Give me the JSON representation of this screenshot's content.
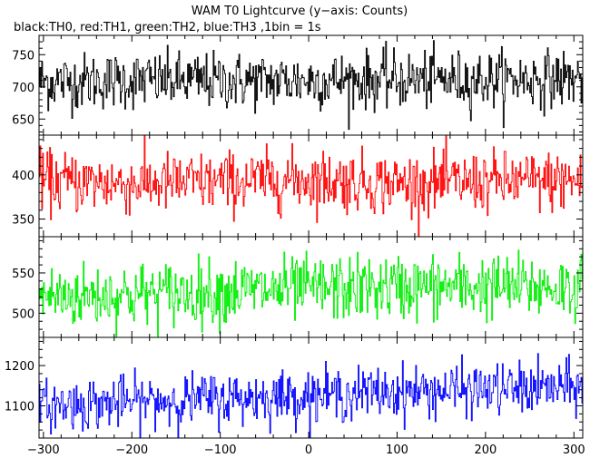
{
  "chart_data": {
    "type": "line",
    "title": "WAM T0 Lightcurve (y−axis: Counts)",
    "subtitle": "black:TH0, red:TH1, green:TH2, blue:TH3 ,1bin = 1s",
    "xlim": [
      -305,
      310
    ],
    "x_ticks": [
      -300,
      -200,
      -100,
      0,
      100,
      200,
      300
    ],
    "bin_seconds": 1,
    "grid": false,
    "panels": [
      {
        "name": "TH0",
        "color": "#000000",
        "ylim": [
          625,
          780
        ],
        "y_ticks": [
          650,
          700,
          750
        ],
        "mean": 710,
        "sd": 22,
        "anchors": [
          [
            -300,
            708
          ],
          [
            -200,
            710
          ],
          [
            -100,
            709
          ],
          [
            0,
            710
          ],
          [
            100,
            711
          ],
          [
            200,
            711
          ],
          [
            300,
            713
          ]
        ]
      },
      {
        "name": "TH1",
        "color": "#ff0000",
        "ylim": [
          330,
          445
        ],
        "y_ticks": [
          350,
          400
        ],
        "mean": 392,
        "sd": 17,
        "anchors": [
          [
            -300,
            393
          ],
          [
            -200,
            390
          ],
          [
            -100,
            392
          ],
          [
            0,
            395
          ],
          [
            100,
            390
          ],
          [
            200,
            392
          ],
          [
            300,
            393
          ]
        ]
      },
      {
        "name": "TH2",
        "color": "#00ee00",
        "ylim": [
          470,
          595
        ],
        "y_ticks": [
          500,
          550
        ],
        "mean": 527,
        "sd": 20,
        "anchors": [
          [
            -300,
            521
          ],
          [
            -200,
            523
          ],
          [
            -100,
            527
          ],
          [
            0,
            530
          ],
          [
            100,
            532
          ],
          [
            200,
            533
          ],
          [
            300,
            532
          ]
        ]
      },
      {
        "name": "TH3",
        "color": "#0000ff",
        "ylim": [
          1020,
          1270
        ],
        "y_ticks": [
          1100,
          1200
        ],
        "mean": 1120,
        "sd": 32,
        "anchors": [
          [
            -300,
            1100
          ],
          [
            -200,
            1110
          ],
          [
            -100,
            1118
          ],
          [
            0,
            1125
          ],
          [
            100,
            1135
          ],
          [
            200,
            1140
          ],
          [
            300,
            1145
          ]
        ]
      }
    ]
  }
}
